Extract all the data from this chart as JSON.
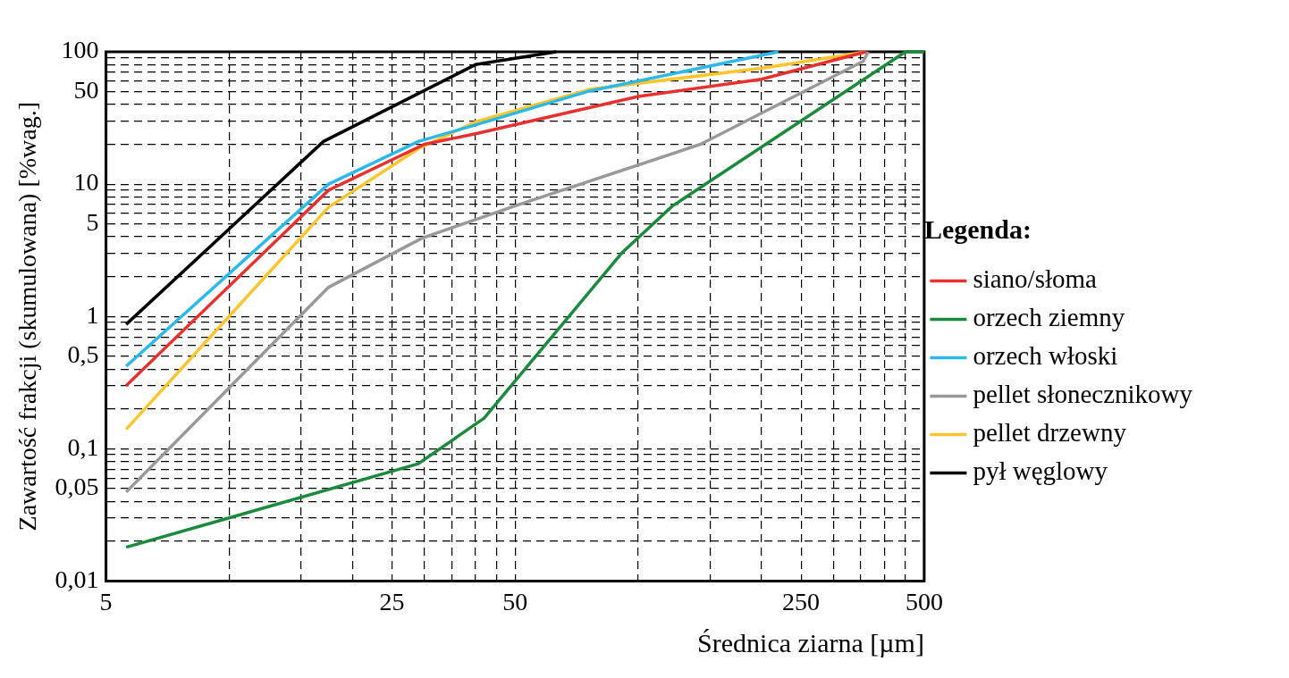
{
  "chart_data": {
    "type": "line",
    "xlabel": "Średnica ziarna [µm]",
    "ylabel": "Zawartość frakcji (skumulowana) [%wag.]",
    "legend_title": "Legenda:",
    "log": "xy",
    "xlim": [
      5,
      500
    ],
    "ylim": [
      0.01,
      100
    ],
    "xticks": [
      5,
      {
        "value": 10,
        "label": null
      },
      {
        "value": 15,
        "label": null
      },
      {
        "value": 20,
        "label": null
      },
      25,
      {
        "value": 30,
        "label": null
      },
      {
        "value": 35,
        "label": null
      },
      {
        "value": 40,
        "label": null
      },
      {
        "value": 45,
        "label": null
      },
      50,
      {
        "value": 100,
        "label": null
      },
      {
        "value": 150,
        "label": null
      },
      {
        "value": 200,
        "label": null
      },
      250,
      {
        "value": 300,
        "label": null
      },
      {
        "value": 350,
        "label": null
      },
      {
        "value": 400,
        "label": null
      },
      {
        "value": 450,
        "label": null
      },
      500
    ],
    "yticks": [
      {
        "value": 0.01,
        "label": "0,01"
      },
      {
        "value": 0.02,
        "label": null
      },
      {
        "value": 0.03,
        "label": null
      },
      {
        "value": 0.04,
        "label": null
      },
      {
        "value": 0.05,
        "label": "0,05"
      },
      {
        "value": 0.06,
        "label": null
      },
      {
        "value": 0.07,
        "label": null
      },
      {
        "value": 0.08,
        "label": null
      },
      {
        "value": 0.09,
        "label": null
      },
      {
        "value": 0.1,
        "label": "0,1"
      },
      {
        "value": 0.2,
        "label": null
      },
      {
        "value": 0.3,
        "label": null
      },
      {
        "value": 0.4,
        "label": null
      },
      {
        "value": 0.5,
        "label": "0,5"
      },
      {
        "value": 0.6,
        "label": null
      },
      {
        "value": 0.7,
        "label": null
      },
      {
        "value": 0.8,
        "label": null
      },
      {
        "value": 0.9,
        "label": null
      },
      1,
      {
        "value": 2,
        "label": null
      },
      {
        "value": 3,
        "label": null
      },
      {
        "value": 4,
        "label": null
      },
      5,
      {
        "value": 6,
        "label": null
      },
      {
        "value": 7,
        "label": null
      },
      {
        "value": 8,
        "label": null
      },
      {
        "value": 9,
        "label": null
      },
      10,
      {
        "value": 20,
        "label": null
      },
      {
        "value": 30,
        "label": null
      },
      {
        "value": 40,
        "label": null
      },
      50,
      {
        "value": 60,
        "label": null
      },
      {
        "value": 70,
        "label": null
      },
      {
        "value": 80,
        "label": null
      },
      {
        "value": 90,
        "label": null
      },
      100
    ],
    "grid": true,
    "legend": "right",
    "marker": "none",
    "line_style": "solid",
    "series": [
      {
        "name": "siano/słoma",
        "color": "#e8312f",
        "x": [
          5.6,
          17.5,
          30,
          40,
          100,
          200,
          360
        ],
        "values": [
          0.3,
          9,
          20,
          24,
          46,
          62,
          100
        ]
      },
      {
        "name": "orzech ziemny",
        "color": "#1a8a3c",
        "x": [
          5.6,
          10,
          29,
          42,
          91,
          121,
          450,
          500
        ],
        "values": [
          0.018,
          0.03,
          0.077,
          0.17,
          3,
          6.8,
          100,
          100
        ]
      },
      {
        "name": "orzech włoski",
        "color": "#2bb8ea",
        "x": [
          5.6,
          17.5,
          29,
          40,
          75,
          220
        ],
        "values": [
          0.42,
          10,
          21,
          28,
          50,
          100
        ]
      },
      {
        "name": "pellet słonecznikowy",
        "color": "#999999",
        "x": [
          5.6,
          17.5,
          29.6,
          51,
          142,
          355,
          365
        ],
        "values": [
          0.047,
          1.66,
          3.9,
          7,
          20,
          85,
          100
        ]
      },
      {
        "name": "pellet drzewny",
        "color": "#fcc52c",
        "x": [
          5.6,
          17.5,
          29,
          40,
          76,
          205,
          360
        ],
        "values": [
          0.14,
          6.7,
          18.5,
          29.5,
          52,
          76,
          100
        ]
      },
      {
        "name": "pył węglowy",
        "color": "#000000",
        "x": [
          5.6,
          17,
          40,
          63
        ],
        "values": [
          0.87,
          21,
          80,
          100
        ]
      }
    ]
  }
}
